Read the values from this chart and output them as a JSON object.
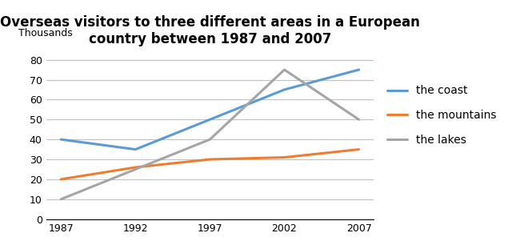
{
  "title_line1": "Overseas visitors to three different areas in a European",
  "title_line2": "country between 1987 and 2007",
  "ylabel": "Thousands",
  "years": [
    1987,
    1992,
    1997,
    2002,
    2007
  ],
  "series": {
    "the coast": {
      "values": [
        40,
        35,
        50,
        65,
        75
      ],
      "color": "#5B9BD5",
      "linewidth": 2.2
    },
    "the mountains": {
      "values": [
        20,
        26,
        30,
        31,
        35
      ],
      "color": "#ED7D31",
      "linewidth": 2.2
    },
    "the lakes": {
      "values": [
        10,
        25,
        40,
        75,
        50
      ],
      "color": "#A5A5A5",
      "linewidth": 2.2
    }
  },
  "ylim": [
    0,
    85
  ],
  "yticks": [
    0,
    10,
    20,
    30,
    40,
    50,
    60,
    70,
    80
  ],
  "background_color": "#ffffff",
  "grid_color": "#c0c0c0",
  "title_fontsize": 12,
  "legend_fontsize": 10,
  "tick_fontsize": 9
}
